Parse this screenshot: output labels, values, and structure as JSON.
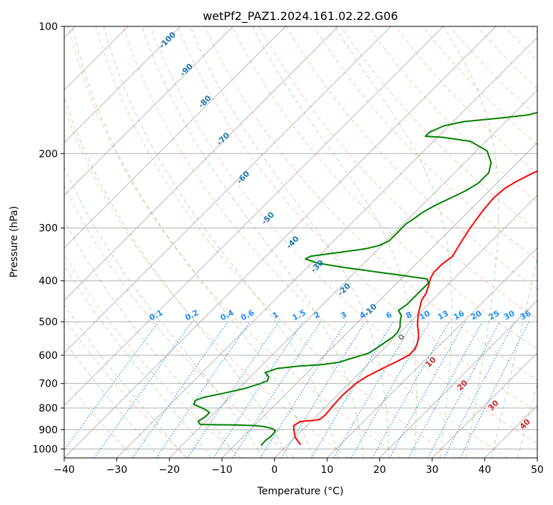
{
  "chart_data": {
    "type": "line",
    "title": "wetPf2_PAZ1.2024.161.02.22.G06",
    "xlabel": "Temperature (°C)",
    "ylabel": "Pressure (hPa)",
    "xlim": [
      -40,
      50
    ],
    "ylim": [
      1050,
      100
    ],
    "y_scale": "log",
    "grid": true,
    "x_ticks": [
      "−40",
      "−30",
      "−20",
      "−10",
      "0",
      "10",
      "20",
      "30",
      "40",
      "50"
    ],
    "y_ticks": [
      "100",
      "200",
      "300",
      "400",
      "500",
      "600",
      "700",
      "800",
      "900",
      "1000"
    ],
    "x_tick_values": [
      -40,
      -30,
      -20,
      -10,
      0,
      10,
      20,
      30,
      40,
      50
    ],
    "y_tick_values": [
      100,
      200,
      300,
      400,
      500,
      600,
      700,
      800,
      900,
      1000
    ],
    "series": [
      {
        "key": "temperature",
        "color": "#ff0000",
        "points": [
          [
            2.5,
            978
          ],
          [
            1.5,
            962
          ],
          [
            0.0,
            938
          ],
          [
            -1.5,
            905
          ],
          [
            -2.5,
            880
          ],
          [
            -2.0,
            862
          ],
          [
            -1.0,
            858
          ],
          [
            0.5,
            856
          ],
          [
            1.3,
            850
          ],
          [
            1.5,
            830
          ],
          [
            1.2,
            790
          ],
          [
            1.0,
            750
          ],
          [
            1.3,
            700
          ],
          [
            2.0,
            675
          ],
          [
            3.5,
            645
          ],
          [
            5.0,
            620
          ],
          [
            6.0,
            600
          ],
          [
            6.0,
            580
          ],
          [
            5.5,
            565
          ],
          [
            4.5,
            545
          ],
          [
            3.5,
            530
          ],
          [
            2.0,
            510
          ],
          [
            1.0,
            495
          ],
          [
            0.0,
            480
          ],
          [
            -1.0,
            462
          ],
          [
            -2.0,
            445
          ],
          [
            -2.5,
            428
          ],
          [
            -3.5,
            410
          ],
          [
            -4.5,
            395
          ],
          [
            -5.0,
            382
          ],
          [
            -5.0,
            366
          ],
          [
            -4.5,
            350
          ],
          [
            -5.0,
            338
          ],
          [
            -5.5,
            326
          ],
          [
            -6.0,
            313
          ],
          [
            -6.5,
            301
          ],
          [
            -7.0,
            286
          ],
          [
            -7.5,
            270
          ],
          [
            -7.8,
            255
          ],
          [
            -7.5,
            242
          ],
          [
            -6.5,
            232
          ],
          [
            -5.0,
            222
          ],
          [
            -2.5,
            211
          ],
          [
            -0.5,
            203
          ],
          [
            1.5,
            196
          ],
          [
            4.0,
            189
          ],
          [
            6.5,
            183
          ],
          [
            8.5,
            178
          ],
          [
            10.5,
            173
          ],
          [
            11.5,
            169
          ],
          [
            12.5,
            166
          ],
          [
            13.5,
            162
          ],
          [
            14.5,
            158
          ],
          [
            15.5,
            153
          ],
          [
            16.5,
            147
          ],
          [
            17.5,
            141
          ],
          [
            18.5,
            135
          ],
          [
            20.0,
            129
          ],
          [
            21.5,
            123
          ],
          [
            22.5,
            117
          ],
          [
            23.2,
            112
          ],
          [
            24.0,
            108
          ],
          [
            25.0,
            104
          ],
          [
            25.5,
            100
          ]
        ]
      },
      {
        "key": "dewpoint",
        "color": "#008000",
        "points": [
          [
            -4.9,
            982
          ],
          [
            -5.0,
            968
          ],
          [
            -5.0,
            950
          ],
          [
            -4.8,
            935
          ],
          [
            -4.8,
            920
          ],
          [
            -5.0,
            905
          ],
          [
            -6.0,
            895
          ],
          [
            -8.0,
            885
          ],
          [
            -10.0,
            880
          ],
          [
            -14.0,
            877
          ],
          [
            -18.0,
            876
          ],
          [
            -20.5,
            875
          ],
          [
            -21.5,
            860
          ],
          [
            -21.0,
            840
          ],
          [
            -21.0,
            820
          ],
          [
            -22.0,
            810
          ],
          [
            -23.5,
            798
          ],
          [
            -25.5,
            785
          ],
          [
            -26.0,
            768
          ],
          [
            -25.0,
            755
          ],
          [
            -22.0,
            738
          ],
          [
            -19.0,
            720
          ],
          [
            -17.0,
            702
          ],
          [
            -16.0,
            690
          ],
          [
            -16.5,
            675
          ],
          [
            -18.0,
            660
          ],
          [
            -16.5,
            645
          ],
          [
            -13.0,
            637
          ],
          [
            -9.0,
            632
          ],
          [
            -6.0,
            624
          ],
          [
            -4.5,
            612
          ],
          [
            -3.5,
            605
          ],
          [
            -2.0,
            593
          ],
          [
            -1.5,
            578
          ],
          [
            -1.0,
            560
          ],
          [
            -0.5,
            545
          ],
          [
            -0.5,
            530
          ],
          [
            -1.0,
            515
          ],
          [
            -2.0,
            500
          ],
          [
            -3.0,
            483
          ],
          [
            -4.5,
            470
          ],
          [
            -4.0,
            455
          ],
          [
            -4.0,
            440
          ],
          [
            -4.0,
            428
          ],
          [
            -4.0,
            418
          ],
          [
            -4.0,
            405
          ],
          [
            -5.0,
            396
          ],
          [
            -10.0,
            389
          ],
          [
            -16.0,
            381
          ],
          [
            -23.0,
            372
          ],
          [
            -29.0,
            363
          ],
          [
            -32.0,
            355
          ],
          [
            -31.5,
            350
          ],
          [
            -27.0,
            343
          ],
          [
            -22.5,
            336
          ],
          [
            -20.5,
            330
          ],
          [
            -19.5,
            322
          ],
          [
            -19.5,
            312
          ],
          [
            -19.5,
            302
          ],
          [
            -19.5,
            293
          ],
          [
            -19.0,
            285
          ],
          [
            -18.5,
            275
          ],
          [
            -17.5,
            265
          ],
          [
            -16.0,
            255
          ],
          [
            -14.5,
            245
          ],
          [
            -13.5,
            235
          ],
          [
            -13.5,
            222
          ],
          [
            -15.0,
            210
          ],
          [
            -18.0,
            197
          ],
          [
            -23.0,
            187
          ],
          [
            -29.0,
            183
          ],
          [
            -32.5,
            182
          ],
          [
            -32.5,
            178
          ],
          [
            -31.0,
            172
          ],
          [
            -28.0,
            168
          ],
          [
            -22.0,
            165
          ],
          [
            -17.0,
            162
          ],
          [
            -14.0,
            157
          ],
          [
            -11.0,
            149
          ],
          [
            -8.0,
            141
          ],
          [
            -5.0,
            133
          ],
          [
            -2.0,
            125
          ],
          [
            0.0,
            117
          ],
          [
            1.5,
            109
          ],
          [
            2.5,
            104
          ],
          [
            3.5,
            100
          ]
        ]
      }
    ],
    "isotherm_labels": [
      {
        "value": "-100",
        "at": [
          -20.3,
          108
        ]
      },
      {
        "value": "-90",
        "at": [
          -16.7,
          127
        ]
      },
      {
        "value": "-80",
        "at": [
          -13.2,
          151
        ]
      },
      {
        "value": "-70",
        "at": [
          -9.7,
          185
        ]
      },
      {
        "value": "-60",
        "at": [
          -5.9,
          228
        ]
      },
      {
        "value": "-50",
        "at": [
          -1.2,
          285
        ]
      },
      {
        "value": "-40",
        "at": [
          3.5,
          325
        ]
      },
      {
        "value": "-30",
        "at": [
          8.2,
          370
        ]
      },
      {
        "value": "-20",
        "at": [
          13.3,
          420
        ]
      },
      {
        "value": "-10",
        "at": [
          18.3,
          470
        ]
      },
      {
        "value": "0",
        "at": [
          24.2,
          545
        ]
      },
      {
        "value": "10",
        "at": [
          29.8,
          624
        ]
      },
      {
        "value": "20",
        "at": [
          35.8,
          708
        ]
      },
      {
        "value": "30",
        "at": [
          41.7,
          790
        ]
      },
      {
        "value": "40",
        "at": [
          47.7,
          875
        ]
      }
    ],
    "mixing_ratio_labels": [
      {
        "value": "0.1",
        "at": -22.3
      },
      {
        "value": "0.2",
        "at": -15.5
      },
      {
        "value": "0.4",
        "at": -8.8
      },
      {
        "value": "0.6",
        "at": -4.9
      },
      {
        "value": "1",
        "at": 0.4
      },
      {
        "value": "1.5",
        "at": 4.9
      },
      {
        "value": "2",
        "at": 8.3
      },
      {
        "value": "3",
        "at": 13.4
      },
      {
        "value": "4",
        "at": 17.0
      },
      {
        "value": "6",
        "at": 22.0
      },
      {
        "value": "8",
        "at": 25.8
      },
      {
        "value": "10",
        "at": 28.8
      },
      {
        "value": "13",
        "at": 32.3
      },
      {
        "value": "16",
        "at": 35.3
      },
      {
        "value": "20",
        "at": 38.6
      },
      {
        "value": "25",
        "at": 42.0
      },
      {
        "value": "30",
        "at": 44.9
      },
      {
        "value": "36",
        "at": 48.0
      }
    ],
    "colors": {
      "isotherm_label_cold": "#1f77b4",
      "isotherm_label_warm": "#d62728",
      "isotherm_label_zero": "#808080",
      "mixing_ratio": "#1e90ff",
      "dry_adiabat": "#ff7f50",
      "moist_adiabat": "#2ca02c",
      "skewed_isotherm": "#808080",
      "isobar_grid": "#b0b0b0"
    }
  }
}
